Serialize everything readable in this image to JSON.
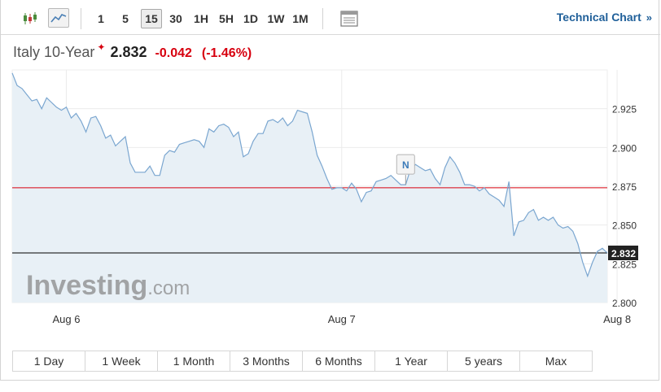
{
  "toolbar": {
    "candlestick_icon": "candlestick-chart-icon",
    "line_icon": "line-chart-icon",
    "timeframes": [
      "1",
      "5",
      "15",
      "30",
      "1H",
      "5H",
      "1D",
      "1W",
      "1M"
    ],
    "active_timeframe": "15",
    "table_icon": "table-view-icon",
    "technical_link": "Technical Chart",
    "technical_link_icon": "double-chevron-right-icon"
  },
  "instrument": {
    "name": "Italy 10-Year",
    "price": "2.832",
    "change": "-0.042",
    "change_pct": "(-1.46%)",
    "flag_icon": "delayed-data-pin-icon"
  },
  "colors": {
    "accent": "#1f5f99",
    "negative": "#d7000f",
    "line": "#7aa6d0",
    "area": "#e8f0f6",
    "prev_close_line": "#d7000f",
    "current_line": "#000000"
  },
  "watermark": {
    "brand": "Investing",
    "suffix": ".com"
  },
  "news_marker": "N",
  "range_buttons": [
    "1 Day",
    "1 Week",
    "1 Month",
    "3 Months",
    "6 Months",
    "1 Year",
    "5 years",
    "Max"
  ],
  "chart_data": {
    "type": "area",
    "title": "",
    "xlabel": "",
    "ylabel": "",
    "ylim": [
      2.8,
      2.95
    ],
    "yticks": [
      2.8,
      2.825,
      2.85,
      2.875,
      2.9,
      2.925
    ],
    "ytick_labels": [
      "2.800",
      "2.825",
      "2.850",
      "2.875",
      "2.900",
      "2.925"
    ],
    "xtick_labels": [
      {
        "label": "Aug 6",
        "index": 11
      },
      {
        "label": "Aug 7",
        "index": 67
      },
      {
        "label": "Aug 8",
        "index": 123
      }
    ],
    "reference_lines": [
      {
        "name": "previous close",
        "value": 2.874
      },
      {
        "name": "last",
        "value": 2.832,
        "label": "2.832"
      }
    ],
    "news_marker_index": 80,
    "values": [
      2.948,
      2.94,
      2.938,
      2.934,
      2.93,
      2.931,
      2.925,
      2.932,
      2.929,
      2.926,
      2.924,
      2.926,
      2.919,
      2.922,
      2.917,
      2.91,
      2.919,
      2.92,
      2.914,
      2.906,
      2.908,
      2.901,
      2.904,
      2.907,
      2.89,
      2.884,
      2.884,
      2.884,
      2.888,
      2.882,
      2.882,
      2.895,
      2.898,
      2.897,
      2.902,
      2.903,
      2.904,
      2.905,
      2.904,
      2.9,
      2.912,
      2.91,
      2.914,
      2.915,
      2.913,
      2.907,
      2.91,
      2.894,
      2.896,
      2.904,
      2.909,
      2.909,
      2.917,
      2.918,
      2.916,
      2.919,
      2.914,
      2.917,
      2.924,
      2.923,
      2.922,
      2.91,
      2.895,
      2.888,
      2.88,
      2.873,
      2.874,
      2.874,
      2.872,
      2.877,
      2.873,
      2.865,
      2.871,
      2.872,
      2.878,
      2.879,
      2.88,
      2.882,
      2.879,
      2.876,
      2.876,
      2.886,
      2.889,
      2.887,
      2.885,
      2.886,
      2.88,
      2.876,
      2.887,
      2.894,
      2.89,
      2.884,
      2.876,
      2.876,
      2.875,
      2.872,
      2.874,
      2.87,
      2.868,
      2.866,
      2.862,
      2.878,
      2.843,
      2.852,
      2.853,
      2.858,
      2.86,
      2.853,
      2.855,
      2.853,
      2.855,
      2.85,
      2.848,
      2.849,
      2.846,
      2.838,
      2.826,
      2.817,
      2.826,
      2.833,
      2.835,
      2.832
    ]
  }
}
